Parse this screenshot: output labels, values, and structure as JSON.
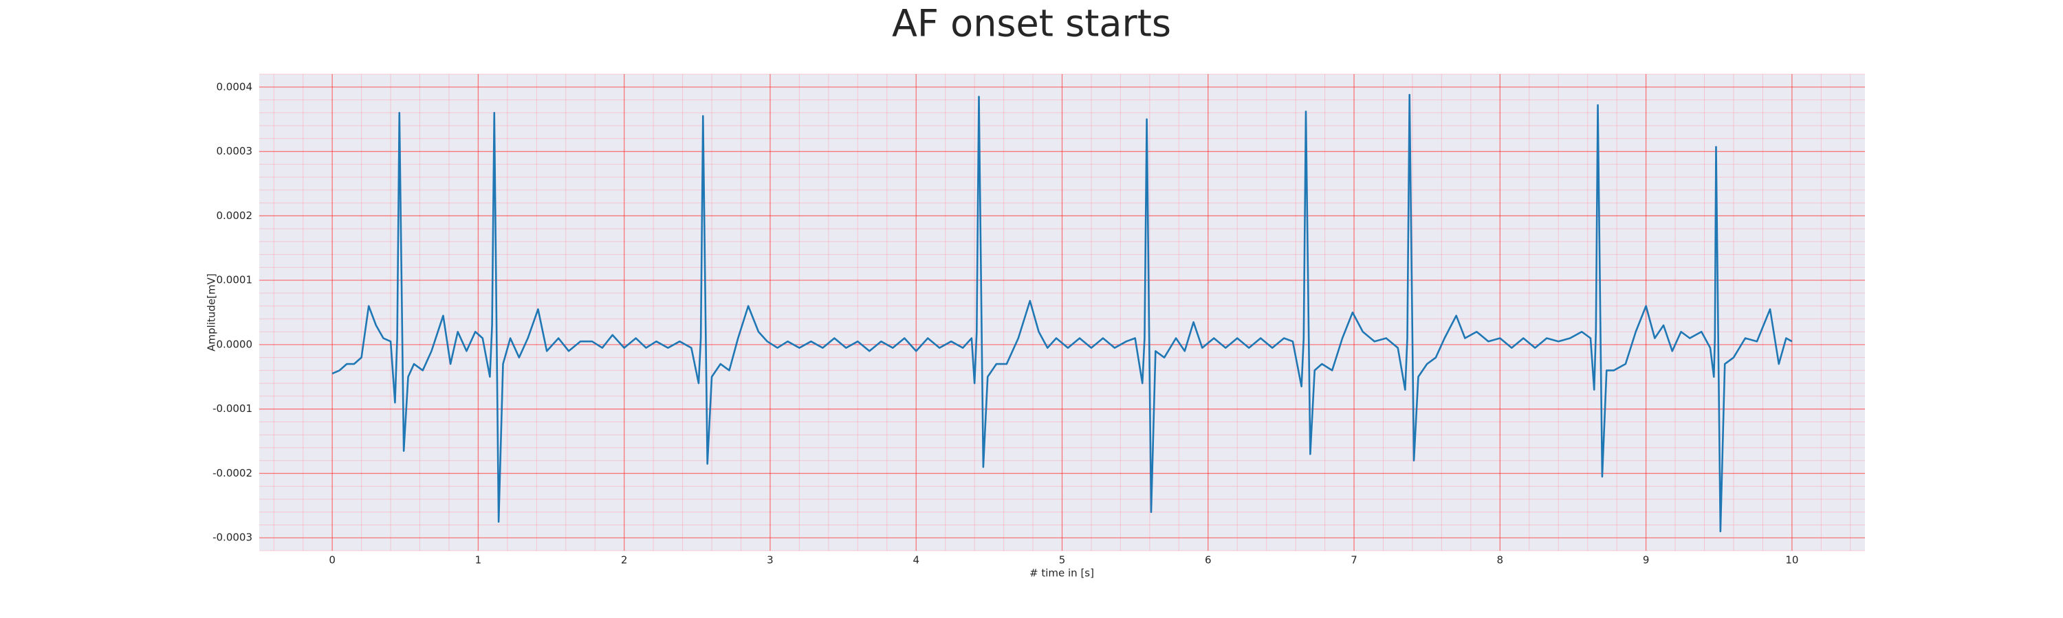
{
  "chart_data": {
    "type": "line",
    "title": "AF onset starts",
    "x_label": "# time in [s]",
    "y_label": "Amplitude[mV]",
    "color": "#1f77b4",
    "grid": true,
    "minor_grid": true,
    "xlim": [
      -0.5,
      10.5
    ],
    "ylim": [
      -0.00032,
      0.00042
    ],
    "xticks": [
      0,
      1,
      2,
      3,
      4,
      5,
      6,
      7,
      8,
      9,
      10
    ],
    "yticks": [
      {
        "value": -0.0003,
        "label": "-0.0003"
      },
      {
        "value": -0.0002,
        "label": "-0.0002"
      },
      {
        "value": -0.0001,
        "label": "-0.0001"
      },
      {
        "value": 0,
        "label": "0.0000"
      },
      {
        "value": 0.0001,
        "label": "0.0001"
      },
      {
        "value": 0.0002,
        "label": "0.0002"
      },
      {
        "value": 0.0003,
        "label": "0.0003"
      },
      {
        "value": 0.0004,
        "label": "0.0004"
      }
    ],
    "x": [
      0.0,
      0.05,
      0.1,
      0.15,
      0.2,
      0.25,
      0.3,
      0.35,
      0.4,
      0.43,
      0.445,
      0.46,
      0.49,
      0.52,
      0.56,
      0.62,
      0.68,
      0.76,
      0.81,
      0.86,
      0.92,
      0.98,
      1.03,
      1.08,
      1.095,
      1.11,
      1.14,
      1.17,
      1.22,
      1.28,
      1.34,
      1.41,
      1.47,
      1.55,
      1.62,
      1.7,
      1.78,
      1.85,
      1.92,
      2.0,
      2.08,
      2.15,
      2.22,
      2.3,
      2.38,
      2.46,
      2.51,
      2.525,
      2.54,
      2.57,
      2.6,
      2.66,
      2.72,
      2.78,
      2.85,
      2.92,
      2.98,
      3.05,
      3.12,
      3.2,
      3.28,
      3.36,
      3.44,
      3.52,
      3.6,
      3.68,
      3.76,
      3.84,
      3.92,
      4.0,
      4.08,
      4.16,
      4.24,
      4.32,
      4.38,
      4.4,
      4.415,
      4.43,
      4.46,
      4.49,
      4.55,
      4.62,
      4.7,
      4.78,
      4.84,
      4.9,
      4.96,
      5.04,
      5.12,
      5.2,
      5.28,
      5.36,
      5.44,
      5.5,
      5.55,
      5.565,
      5.58,
      5.61,
      5.64,
      5.7,
      5.78,
      5.84,
      5.9,
      5.96,
      6.04,
      6.12,
      6.2,
      6.28,
      6.36,
      6.44,
      6.52,
      6.58,
      6.64,
      6.655,
      6.67,
      6.7,
      6.73,
      6.78,
      6.85,
      6.92,
      6.99,
      7.06,
      7.14,
      7.22,
      7.3,
      7.35,
      7.365,
      7.38,
      7.41,
      7.44,
      7.5,
      7.56,
      7.62,
      7.7,
      7.76,
      7.84,
      7.92,
      8.0,
      8.08,
      8.16,
      8.24,
      8.32,
      8.4,
      8.48,
      8.56,
      8.62,
      8.645,
      8.657,
      8.67,
      8.7,
      8.73,
      8.78,
      8.86,
      8.93,
      9.0,
      9.06,
      9.12,
      9.18,
      9.24,
      9.3,
      9.38,
      9.44,
      9.465,
      9.472,
      9.48,
      9.51,
      9.54,
      9.6,
      9.68,
      9.76,
      9.85,
      9.91,
      9.96,
      10.0
    ],
    "values": [
      -4.5e-05,
      -4e-05,
      -3e-05,
      -3e-05,
      -2e-05,
      6e-05,
      3e-05,
      1e-05,
      5e-06,
      -9e-05,
      1e-05,
      0.00036,
      -0.000165,
      -5e-05,
      -3e-05,
      -4e-05,
      -1e-05,
      4.5e-05,
      -3e-05,
      2e-05,
      -1e-05,
      2e-05,
      1e-05,
      -5e-05,
      3e-05,
      0.00036,
      -0.000275,
      -3e-05,
      1e-05,
      -2e-05,
      1e-05,
      5.5e-05,
      -1e-05,
      1e-05,
      -1e-05,
      5e-06,
      5e-06,
      -5e-06,
      1.5e-05,
      -5e-06,
      1e-05,
      -5e-06,
      5e-06,
      -5e-06,
      5e-06,
      -5e-06,
      -6e-05,
      1e-05,
      0.000355,
      -0.000185,
      -5e-05,
      -3e-05,
      -4e-05,
      1e-05,
      6e-05,
      2e-05,
      5e-06,
      -5e-06,
      5e-06,
      -5e-06,
      5e-06,
      -5e-06,
      1e-05,
      -5e-06,
      5e-06,
      -1e-05,
      5e-06,
      -5e-06,
      1e-05,
      -1e-05,
      1e-05,
      -5e-06,
      5e-06,
      -5e-06,
      1e-05,
      -6e-05,
      2e-05,
      0.000385,
      -0.00019,
      -5e-05,
      -3e-05,
      -3e-05,
      1e-05,
      6.8e-05,
      2e-05,
      -5e-06,
      1e-05,
      -5e-06,
      1e-05,
      -5e-06,
      1e-05,
      -5e-06,
      5e-06,
      1e-05,
      -6e-05,
      1e-05,
      0.00035,
      -0.00026,
      -1e-05,
      -2e-05,
      1e-05,
      -1e-05,
      3.5e-05,
      -5e-06,
      1e-05,
      -5e-06,
      1e-05,
      -5e-06,
      1e-05,
      -5e-06,
      1e-05,
      5e-06,
      -6.5e-05,
      1e-05,
      0.000362,
      -0.00017,
      -4e-05,
      -3e-05,
      -4e-05,
      1e-05,
      5e-05,
      2e-05,
      5e-06,
      1e-05,
      -5e-06,
      -7e-05,
      1e-05,
      0.000388,
      -0.00018,
      -5e-05,
      -3e-05,
      -2e-05,
      1e-05,
      4.5e-05,
      1e-05,
      2e-05,
      5e-06,
      1e-05,
      -5e-06,
      1e-05,
      -5e-06,
      1e-05,
      5e-06,
      1e-05,
      2e-05,
      1e-05,
      -7e-05,
      2e-05,
      0.000372,
      -0.000205,
      -4e-05,
      -4e-05,
      -3e-05,
      2e-05,
      6e-05,
      1e-05,
      3e-05,
      -1e-05,
      2e-05,
      1e-05,
      2e-05,
      -5e-06,
      -5e-05,
      1e-05,
      0.000307,
      -0.00029,
      -3e-05,
      -2e-05,
      1e-05,
      5e-06,
      5.5e-05,
      -3e-05,
      1e-05,
      5e-06
    ]
  }
}
